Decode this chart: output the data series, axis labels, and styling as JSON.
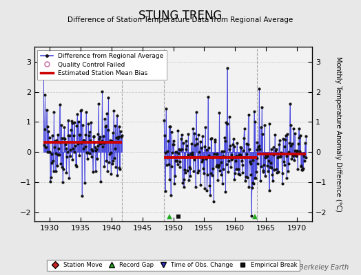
{
  "title": "STUNG TRENG",
  "subtitle": "Difference of Station Temperature Data from Regional Average",
  "ylabel": "Monthly Temperature Anomaly Difference (°C)",
  "credit": "Berkeley Earth",
  "ylim": [
    -2.3,
    3.5
  ],
  "xlim": [
    1927.5,
    1972.5
  ],
  "xticks": [
    1930,
    1935,
    1940,
    1945,
    1950,
    1955,
    1960,
    1965,
    1970
  ],
  "yticks": [
    -2,
    -1,
    0,
    1,
    2,
    3
  ],
  "bg_color": "#e8e8e8",
  "plot_bg_color": "#f2f2f2",
  "line_color": "#4444dd",
  "dot_color": "#111111",
  "bias_color": "#cc0000",
  "gap_vlines": [
    1941.7,
    1948.5,
    1963.5
  ],
  "segments": [
    {
      "xstart": 1929.0,
      "xend": 1941.7,
      "bias": 0.33
    },
    {
      "xstart": 1948.5,
      "xend": 1963.5,
      "bias": -0.18
    },
    {
      "xstart": 1963.5,
      "xend": 1971.5,
      "bias": -0.06
    }
  ],
  "record_gaps": [
    1949.4,
    1963.2
  ],
  "empirical_breaks": [
    1950.8
  ],
  "seed": 42
}
